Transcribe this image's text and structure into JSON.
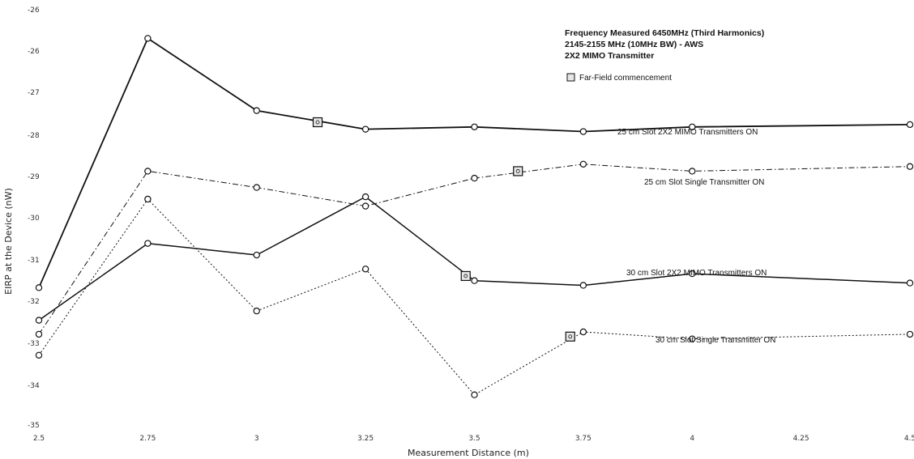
{
  "chart_data": {
    "type": "line",
    "title_lines": [
      "Frequency Measured 6450MHz (Third Harmonics)",
      "2145-2155 MHz (10MHz BW) - AWS",
      "2X2 MIMO Transmitter"
    ],
    "xlabel": "Measurement Distance (m)",
    "ylabel": "EIRP at the Device (nW)",
    "xlim": [
      2.5,
      4.5
    ],
    "ylim": [
      -35,
      -26
    ],
    "x_ticks": [
      "2.5",
      "2.75",
      "3",
      "3.25",
      "3.5",
      "3.75",
      "4",
      "4.25",
      "4.5"
    ],
    "y_ticks": [
      "-26",
      "-26",
      "-27",
      "-28",
      "-29",
      "-30",
      "-31",
      "-32",
      "-33",
      "-34",
      "-35"
    ],
    "grid": false,
    "legend": {
      "label": "Far-Field commencement",
      "position": "top-right"
    },
    "series": [
      {
        "name": "25 cm Slot 2X2 MIMO Transmitters ON",
        "style": "solid",
        "width": 1.8,
        "x": [
          2.5,
          2.75,
          3,
          3.25,
          3.5,
          3.75,
          4,
          4.5
        ],
        "y": [
          -32.0,
          -26.65,
          -28.2,
          -28.6,
          -28.55,
          -28.65,
          -28.55,
          -28.5
        ],
        "far_field": {
          "x": 3.14,
          "y": -28.45
        }
      },
      {
        "name": "25 cm Slot Single Transmitter ON",
        "style": "dashdot",
        "width": 1.0,
        "x": [
          2.5,
          2.75,
          3,
          3.25,
          3.5,
          3.75,
          4,
          4.5
        ],
        "y": [
          -33.0,
          -29.5,
          -29.85,
          -30.25,
          -29.65,
          -29.35,
          -29.5,
          -29.4
        ],
        "far_field": {
          "x": 3.6,
          "y": -29.5
        }
      },
      {
        "name": "30 cm Slot 2X2 MIMO Transmitters ON",
        "style": "solid",
        "width": 1.5,
        "x": [
          2.5,
          2.75,
          3,
          3.25,
          3.5,
          3.75,
          4,
          4.5
        ],
        "y": [
          -32.7,
          -31.05,
          -31.3,
          -30.05,
          -31.85,
          -31.95,
          -31.7,
          -31.9
        ],
        "far_field": {
          "x": 3.48,
          "y": -31.75
        }
      },
      {
        "name": "30 cm Slot Single Transmitter ON",
        "style": "dotted",
        "width": 1.0,
        "x": [
          2.5,
          2.75,
          3,
          3.25,
          3.5,
          3.75,
          4,
          4.5
        ],
        "y": [
          -33.45,
          -30.1,
          -32.5,
          -31.6,
          -34.3,
          -32.95,
          -33.1,
          -33.0
        ],
        "far_field": {
          "x": 3.72,
          "y": -33.05
        }
      }
    ]
  },
  "colors": {
    "line": "#111111",
    "marker_fill": "#ffffff",
    "far_field_fill": "#e6e6e6"
  }
}
